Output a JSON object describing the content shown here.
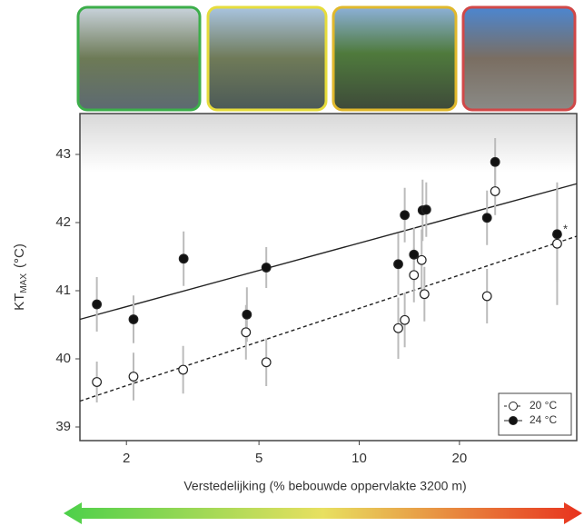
{
  "chart_data": {
    "type": "scatter",
    "xlabel": "Verstedelijking (% bebouwde oppervlakte 3200 m)",
    "ylabel": "KT",
    "ylabel_sub": "MAX",
    "ylabel_unit": "(°C)",
    "xscale": "log",
    "xlim": [
      1.45,
      45
    ],
    "ylim": [
      38.8,
      43.6
    ],
    "xticks": [
      2,
      5,
      10,
      20
    ],
    "yticks": [
      39,
      40,
      41,
      42,
      43
    ],
    "legend": "lower right",
    "annotation": "*",
    "series": [
      {
        "name": "20 °C",
        "color": "#ffffff",
        "x": [
          1.63,
          2.1,
          2.96,
          4.57,
          5.26,
          13.1,
          13.7,
          14.6,
          15.4,
          15.7,
          24.2,
          25.6,
          39.3
        ],
        "values": [
          39.66,
          39.74,
          39.84,
          40.39,
          39.95,
          40.45,
          40.57,
          41.23,
          41.45,
          40.95,
          40.92,
          42.46,
          41.69
        ],
        "errors": [
          0.3,
          0.35,
          0.35,
          0.4,
          0.35,
          0.45,
          0.4,
          0.4,
          0.45,
          0.4,
          0.4,
          0.35,
          0.9
        ],
        "fit_x": [
          1.45,
          45
        ],
        "fit": [
          39.38,
          41.8
        ],
        "fit_dash": true
      },
      {
        "name": "24 °C",
        "color": "#111111",
        "x": [
          1.63,
          2.1,
          2.97,
          4.6,
          5.26,
          13.1,
          13.7,
          14.6,
          15.5,
          15.9,
          24.2,
          25.6,
          39.3
        ],
        "values": [
          40.8,
          40.58,
          41.47,
          40.65,
          41.34,
          41.39,
          42.11,
          41.53,
          42.18,
          42.19,
          42.07,
          42.89,
          41.83
        ],
        "errors": [
          0.4,
          0.35,
          0.4,
          0.4,
          0.3,
          0.45,
          0.4,
          0.4,
          0.45,
          0.4,
          0.4,
          0.35,
          0.7
        ],
        "fit_x": [
          1.45,
          45
        ],
        "fit": [
          40.58,
          42.57
        ],
        "fit_dash": false
      }
    ]
  }
}
